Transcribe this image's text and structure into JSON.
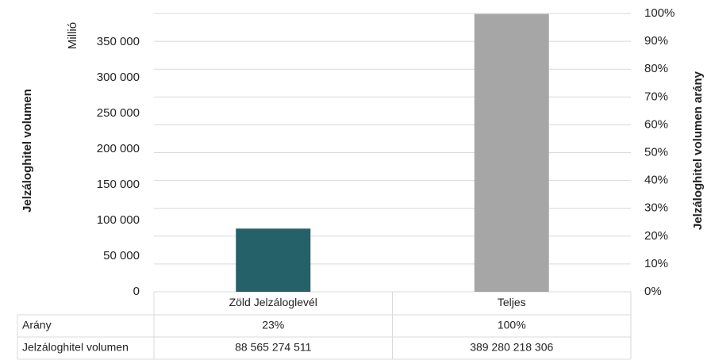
{
  "chart_data": {
    "type": "bar",
    "y_label": "Jelzáloghitel volumen",
    "y_unit": "Millió",
    "y2_label": "Jelzáloghitel volumen arány",
    "categories": [
      "Zöld Jelzáloglevél",
      "Teljes"
    ],
    "series": [
      {
        "name": "Jelzáloghitel volumen",
        "values": [
          88565.274511,
          389280.218306
        ],
        "value_labels": [
          "88 565 274 511",
          "389 280 218 306"
        ],
        "colors": [
          "#256168",
          "#a6a6a6"
        ]
      },
      {
        "name": "Arány",
        "axis": "y2",
        "values": [
          23,
          100
        ],
        "value_labels": [
          "23%",
          "100%"
        ]
      }
    ],
    "ylim": [
      0,
      390000
    ],
    "yticks": [
      0,
      {
        "value": 50000,
        "label": "50 000"
      },
      {
        "value": 100000,
        "label": "100 000"
      },
      {
        "value": 150000,
        "label": "150 000"
      },
      {
        "value": 200000,
        "label": "200 000"
      },
      {
        "value": 250000,
        "label": "250 000"
      },
      {
        "value": 300000,
        "label": "300 000"
      },
      {
        "value": 350000,
        "label": "350 000"
      }
    ],
    "y2lim": [
      0,
      100
    ],
    "y2ticks": [
      {
        "value": 0,
        "label": "0%"
      },
      {
        "value": 10,
        "label": "10%"
      },
      {
        "value": 20,
        "label": "20%"
      },
      {
        "value": 30,
        "label": "30%"
      },
      {
        "value": 40,
        "label": "40%"
      },
      {
        "value": 50,
        "label": "50%"
      },
      {
        "value": 60,
        "label": "60%"
      },
      {
        "value": 70,
        "label": "70%"
      },
      {
        "value": 80,
        "label": "80%"
      },
      {
        "value": 90,
        "label": "90%"
      },
      {
        "value": 100,
        "label": "100%"
      }
    ],
    "grid": true
  }
}
